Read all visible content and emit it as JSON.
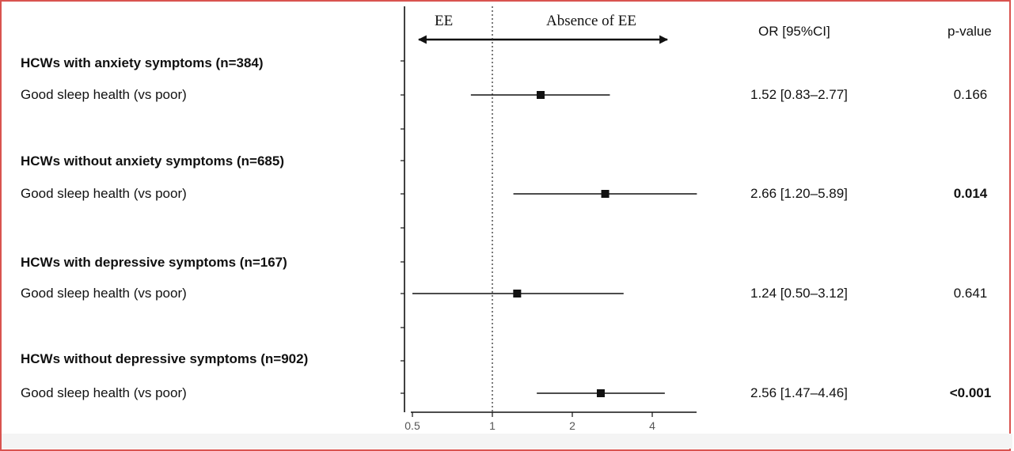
{
  "colors": {
    "frame_border": "#d9534f",
    "ink": "#111111",
    "reference_line": "#333333"
  },
  "chart_data": {
    "type": "forest",
    "x_scale": "log",
    "xlim": [
      0.45,
      5.0
    ],
    "x_ticks": [
      0.5,
      1,
      2,
      4
    ],
    "x_tick_labels": [
      "0.5",
      "1",
      "2",
      "4"
    ],
    "reference_line": 1,
    "direction_labels": {
      "left": "EE",
      "right": "Absence of EE"
    },
    "column_headers": {
      "or": "OR [95%CI]",
      "p": "p-value"
    },
    "groups": [
      {
        "label": "HCWs with anxiety symptoms (n=384)",
        "rows": [
          {
            "label": "Good sleep health (vs poor)",
            "or": 1.52,
            "lower": 0.83,
            "upper": 2.77,
            "or_text": "1.52 [0.83–2.77]",
            "p_text": "0.166",
            "p_bold": false
          }
        ]
      },
      {
        "label": "HCWs without anxiety symptoms (n=685)",
        "rows": [
          {
            "label": "Good sleep health (vs poor)",
            "or": 2.66,
            "lower": 1.2,
            "upper": 5.89,
            "or_text": "2.66 [1.20–5.89]",
            "p_text": "0.014",
            "p_bold": true
          }
        ]
      },
      {
        "label": "HCWs with depressive symptoms (n=167)",
        "rows": [
          {
            "label": "Good sleep health (vs poor)",
            "or": 1.24,
            "lower": 0.5,
            "upper": 3.12,
            "or_text": "1.24 [0.50–3.12]",
            "p_text": "0.641",
            "p_bold": false
          }
        ]
      },
      {
        "label": "HCWs without depressive symptoms (n=902)",
        "rows": [
          {
            "label": "Good sleep health (vs poor)",
            "or": 2.56,
            "lower": 1.47,
            "upper": 4.46,
            "or_text": "2.56 [1.47–4.46]",
            "p_text": "<0.001",
            "p_bold": true
          }
        ]
      }
    ]
  }
}
